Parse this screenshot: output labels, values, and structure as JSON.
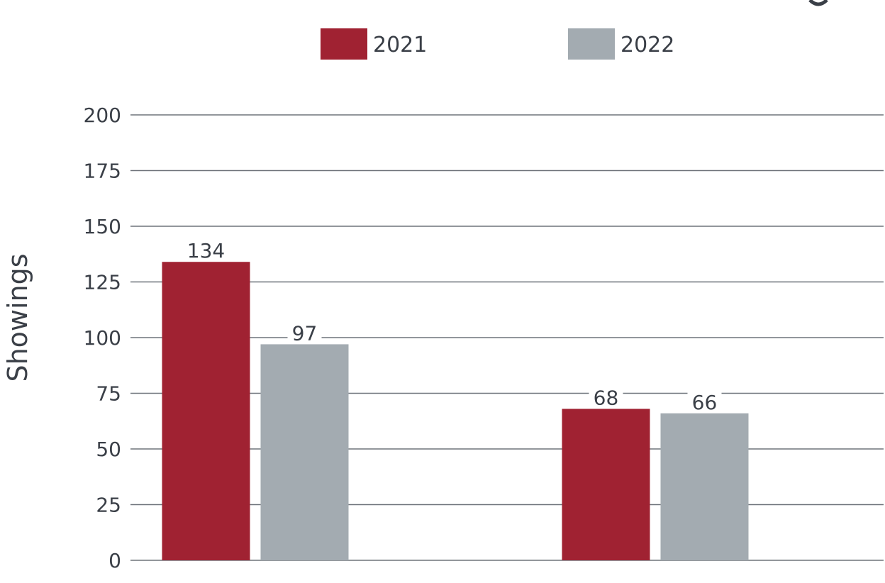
{
  "chart_data": {
    "type": "bar",
    "categories": [
      "",
      ""
    ],
    "series": [
      {
        "name": "2021",
        "values": [
          134,
          68
        ],
        "color": "#a02232"
      },
      {
        "name": "2022",
        "values": [
          97,
          66
        ],
        "color": "#a3abb1"
      }
    ],
    "ylabel": "Showings",
    "xlabel": "",
    "ylim": [
      0,
      200
    ],
    "yticks": [
      0,
      25,
      50,
      75,
      100,
      125,
      150,
      175,
      200
    ],
    "grid": true,
    "legend_position": "top-center",
    "data_labels": [
      [
        "134",
        "68"
      ],
      [
        "97",
        "66"
      ]
    ]
  }
}
